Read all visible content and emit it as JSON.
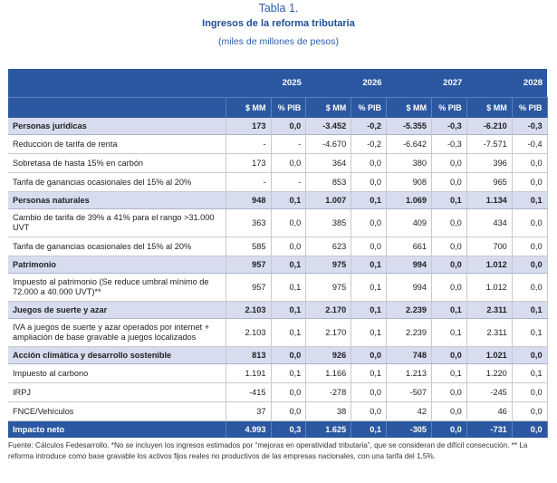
{
  "header": {
    "tabla": "Tabla 1.",
    "title": "Ingresos de la reforma tributaria",
    "subtitle": "(miles de millones de pesos)"
  },
  "table": {
    "years": [
      "2025",
      "2026",
      "2027",
      "2028"
    ],
    "unit_mm": "$ MM",
    "unit_pib": "% PIB",
    "rows": [
      {
        "type": "cat",
        "label": "Personas jurídicas",
        "values": [
          "173",
          "0,0",
          "-3.452",
          "-0,2",
          "-5.355",
          "-0,3",
          "-6.210",
          "-0,3"
        ]
      },
      {
        "type": "item",
        "label": "Reducción de tarifa de renta",
        "values": [
          "-",
          "-",
          "-4.670",
          "-0,2",
          "-6.642",
          "-0,3",
          "-7.571",
          "-0,4"
        ]
      },
      {
        "type": "item",
        "label": "Sobretasa de hasta 15% en carbón",
        "values": [
          "173",
          "0,0",
          "364",
          "0,0",
          "380",
          "0,0",
          "396",
          "0,0"
        ]
      },
      {
        "type": "item",
        "label": "Tarifa de ganancias ocasionales del 15% al 20%",
        "values": [
          "-",
          "-",
          "853",
          "0,0",
          "908",
          "0,0",
          "965",
          "0,0"
        ]
      },
      {
        "type": "cat",
        "label": "Personas naturales",
        "values": [
          "948",
          "0,1",
          "1.007",
          "0,1",
          "1.069",
          "0,1",
          "1.134",
          "0,1"
        ]
      },
      {
        "type": "item tall",
        "label": "Cambio de tarifa de 39% a 41% para el rango >31.000 UVT",
        "values": [
          "363",
          "0,0",
          "385",
          "0,0",
          "409",
          "0,0",
          "434",
          "0,0"
        ]
      },
      {
        "type": "item",
        "label": "Tarifa de ganancias ocasionales del 15% al 20%",
        "values": [
          "585",
          "0,0",
          "623",
          "0,0",
          "661",
          "0,0",
          "700",
          "0,0"
        ]
      },
      {
        "type": "cat",
        "label": "Patrimonio",
        "values": [
          "957",
          "0,1",
          "975",
          "0,1",
          "994",
          "0,0",
          "1.012",
          "0,0"
        ]
      },
      {
        "type": "item tall",
        "label": "Impuesto al patrimonio (Se reduce umbral mínimo de 72.000 a 40.000 UVT)**",
        "values": [
          "957",
          "0,1",
          "975",
          "0,1",
          "994",
          "0,0",
          "1.012",
          "0,0"
        ]
      },
      {
        "type": "cat",
        "label": "Juegos de suerte y azar",
        "values": [
          "2.103",
          "0,1",
          "2.170",
          "0,1",
          "2.239",
          "0,1",
          "2.311",
          "0,1"
        ]
      },
      {
        "type": "item tall",
        "label": "IVA a juegos de suerte y azar operados por internet + ampliación de base gravable a juegos localizados",
        "values": [
          "2.103",
          "0,1",
          "2.170",
          "0,1",
          "2.239",
          "0,1",
          "2.311",
          "0,1"
        ]
      },
      {
        "type": "cat",
        "label": "Acción climática y desarrollo sostenible",
        "values": [
          "813",
          "0,0",
          "926",
          "0,0",
          "748",
          "0,0",
          "1.021",
          "0,0"
        ]
      },
      {
        "type": "item",
        "label": "Impuesto al carbono",
        "values": [
          "1.191",
          "0,1",
          "1.166",
          "0,1",
          "1.213",
          "0,1",
          "1.220",
          "0,1"
        ]
      },
      {
        "type": "item",
        "label": "IRPJ",
        "values": [
          "-415",
          "0,0",
          "-278",
          "0,0",
          "-507",
          "0,0",
          "-245",
          "0,0"
        ]
      },
      {
        "type": "item",
        "label": "FNCE/Vehículos",
        "values": [
          "37",
          "0,0",
          "38",
          "0,0",
          "42",
          "0,0",
          "46",
          "0,0"
        ]
      },
      {
        "type": "total",
        "label": "Impacto neto",
        "values": [
          "4.993",
          "0,3",
          "1.625",
          "0,1",
          "-305",
          "0,0",
          "-731",
          "0,0"
        ]
      }
    ]
  },
  "footer": {
    "note": "Fuente: Cálculos Fedesarrollo. *No se incluyen los ingresos estimados por “mejoras en operatividad tributaria”, que se consideran de difícil consecución. ** La reforma introduce como base gravable los activos fijos reales no productivos de las empresas nacionales, con una tarifa del 1,5%."
  }
}
